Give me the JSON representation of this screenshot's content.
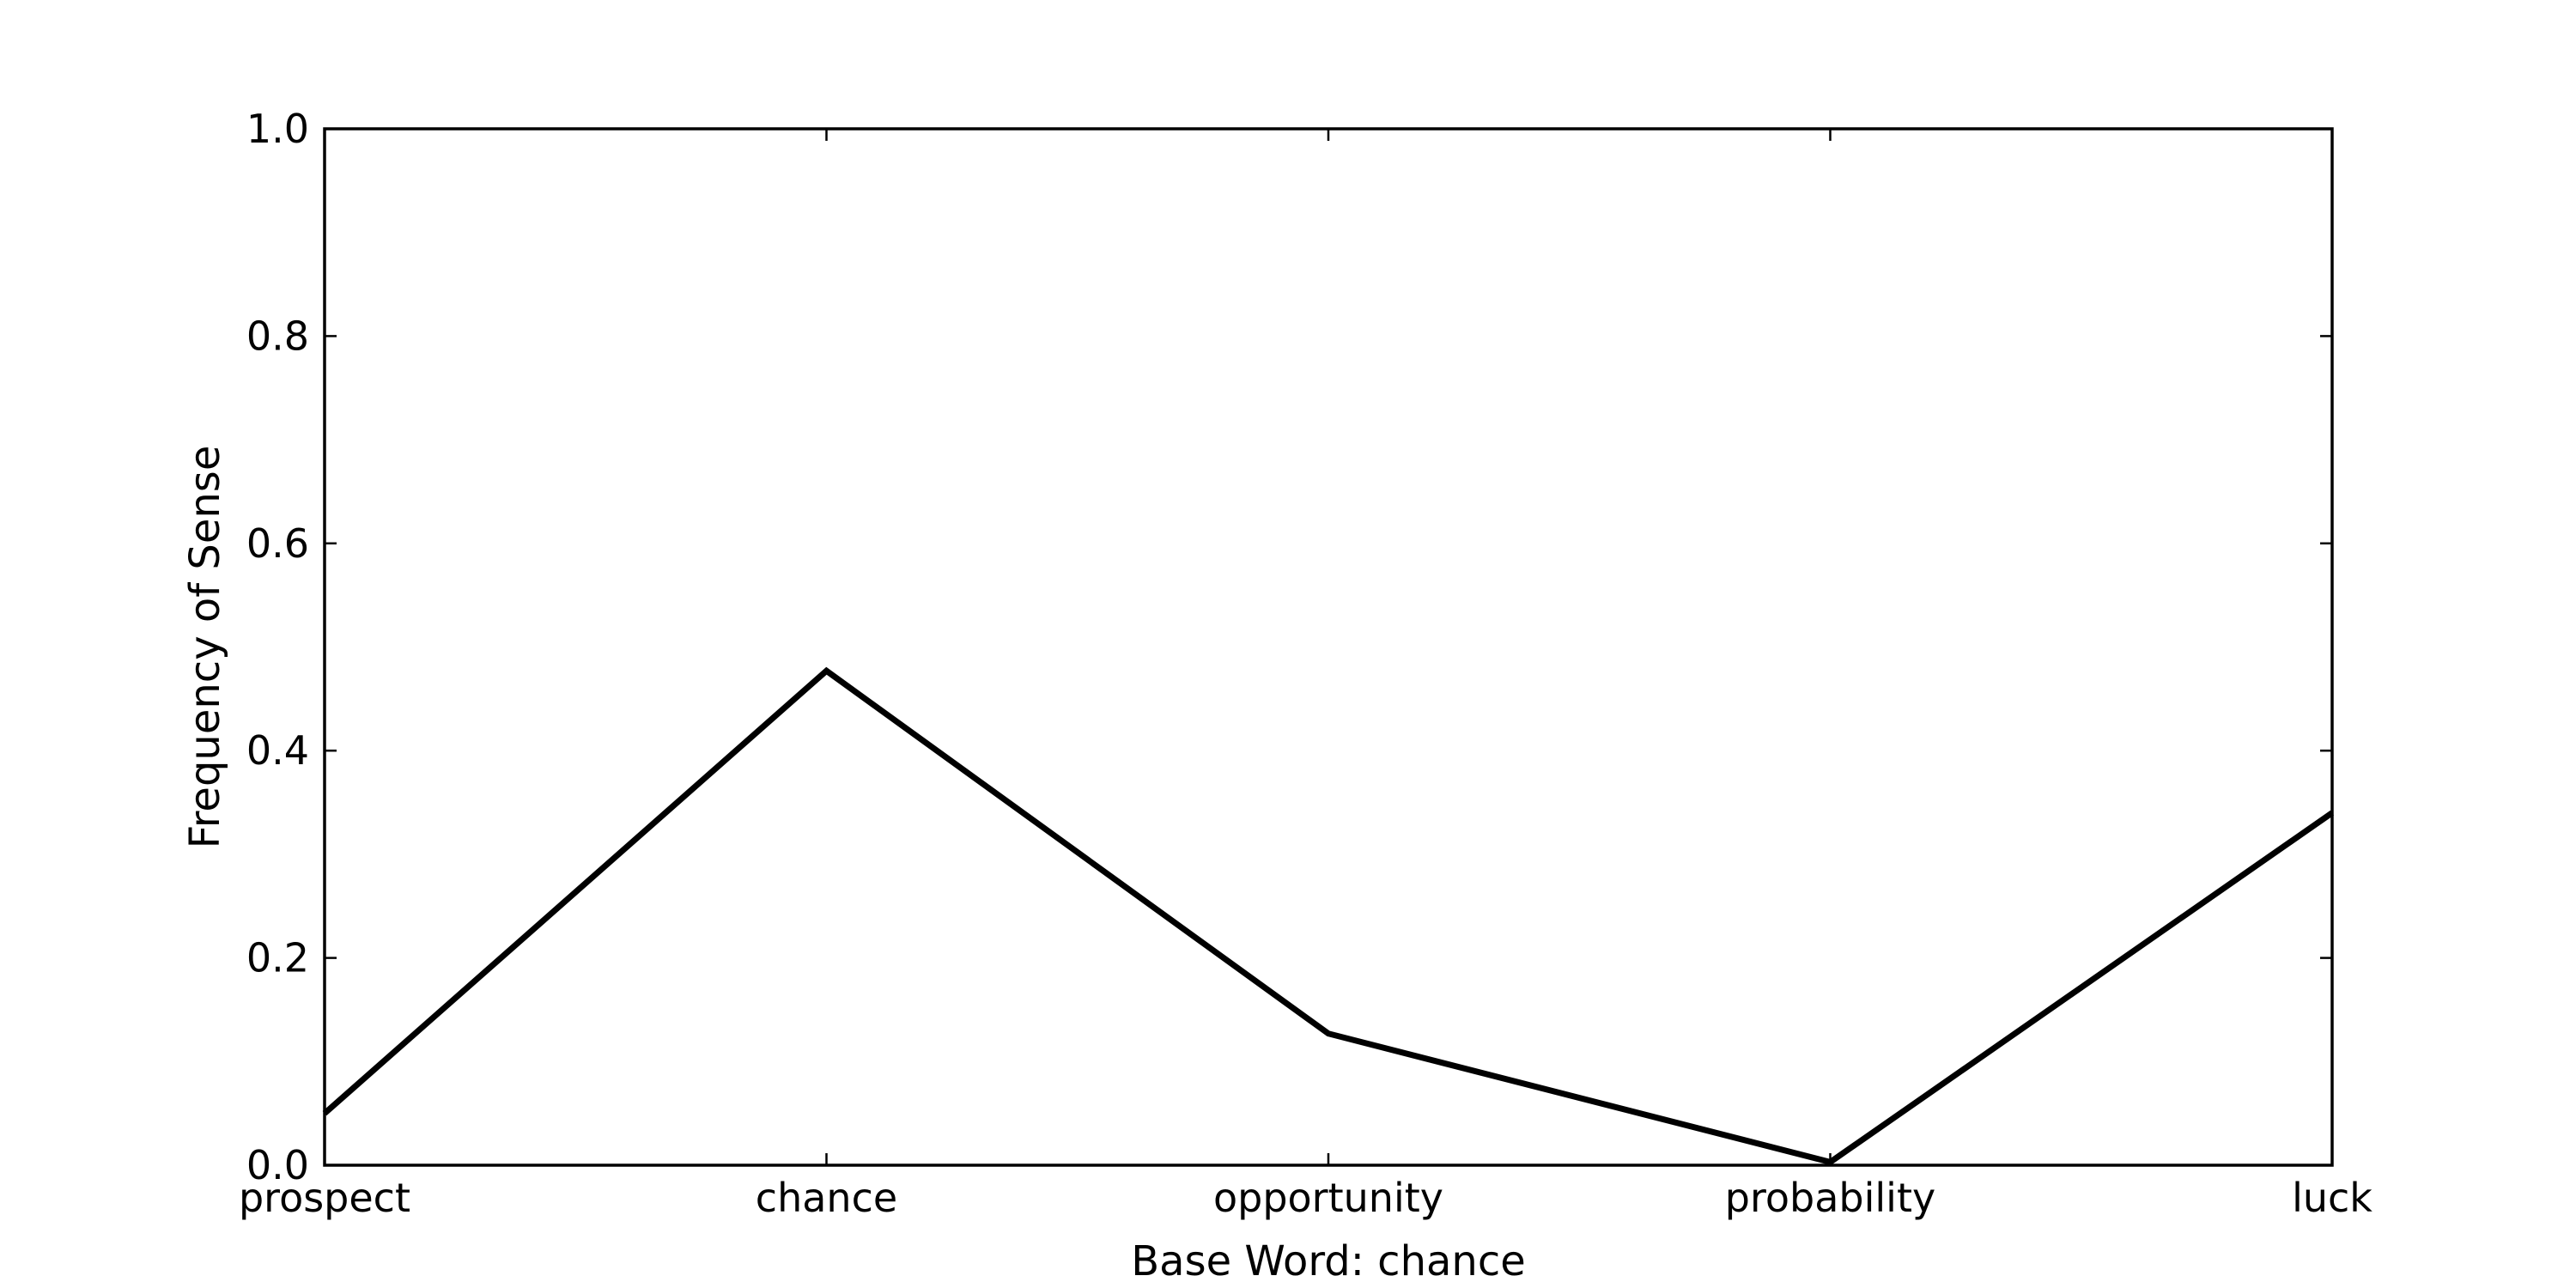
{
  "chart_data": {
    "type": "line",
    "title": "",
    "xlabel": "Base Word: chance",
    "ylabel": "Frequency of Sense",
    "categories": [
      "prospect",
      "chance",
      "opportunity",
      "probability",
      "luck"
    ],
    "series": [
      {
        "values": [
          0.05,
          0.477,
          0.127,
          0.003,
          0.34
        ]
      }
    ],
    "ylim": [
      0.0,
      1.0
    ],
    "yticks": [
      0.0,
      0.2,
      0.4,
      0.6,
      0.8,
      1.0
    ],
    "ytick_labels": [
      "0.0",
      "0.2",
      "0.4",
      "0.6",
      "0.8",
      "1.0"
    ],
    "grid": false,
    "legend": "none",
    "line_color": "#000000"
  }
}
